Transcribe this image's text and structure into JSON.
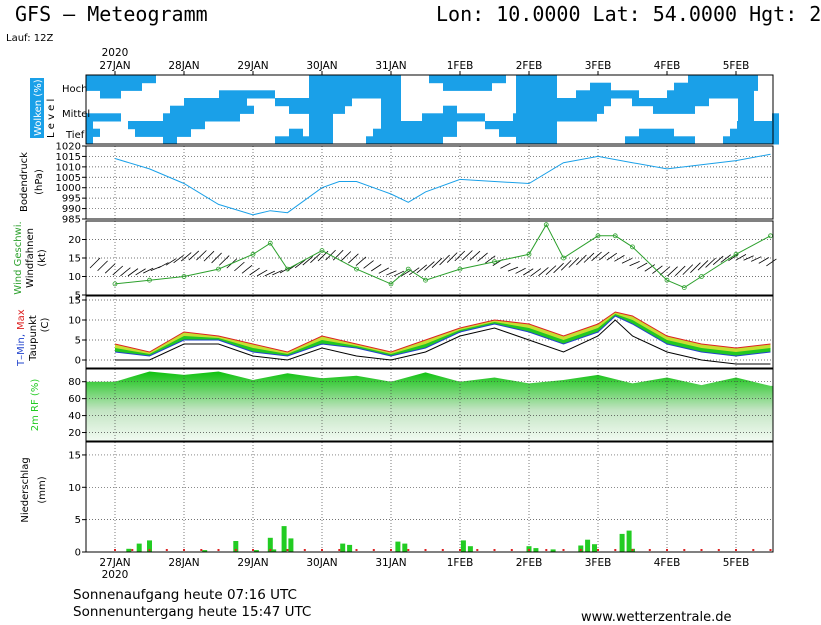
{
  "header": {
    "title": "GFS – Meteogramm",
    "coords": "Lon: 10.0000 Lat: 54.0000 Hgt: 2",
    "run": "Lauf: 12Z"
  },
  "footer": {
    "sunrise": "Sonnenaufgang heute 07:16 UTC",
    "sunset": "Sonnenuntergang heute 15:47 UTC",
    "site": "www.wetterzentrale.de"
  },
  "colors": {
    "clouds": "#1aa0e8",
    "pressure": "#1aa0e8",
    "wind_speed": "#2ca02c",
    "tmin": "#2244cc",
    "tmax": "#dd2222",
    "band_green": "#22c822",
    "band_yellow": "#e3e335",
    "humidity": "#22cc22",
    "precip": "#22cc22",
    "precip_snow": "#dd2222"
  },
  "chart_data": {
    "type": "meteogram",
    "year": "2020",
    "dates": [
      "27JAN",
      "28JAN",
      "29JAN",
      "30JAN",
      "31JAN",
      "1FEB",
      "2FEB",
      "3FEB",
      "4FEB",
      "5FEB"
    ],
    "panels": [
      {
        "id": "clouds",
        "ylabel": "Wolken (%)",
        "levels_label": "L e v e l",
        "levels": [
          "Hoch",
          "Mittel",
          "Tief"
        ]
      },
      {
        "id": "pressure",
        "ylabel": "Bodendruck",
        "unit": "(hPa)",
        "ylim": [
          985,
          1020
        ],
        "yticks": [
          985,
          990,
          995,
          1000,
          1005,
          1010,
          1015,
          1020
        ],
        "x": [
          0,
          0.5,
          1,
          1.5,
          2,
          2.25,
          2.5,
          3,
          3.25,
          3.5,
          4,
          4.25,
          4.5,
          5,
          5.5,
          6,
          6.5,
          7,
          7.5,
          8,
          8.5,
          9,
          9.5
        ],
        "values": [
          1014,
          1009,
          1002,
          992,
          987,
          989,
          988,
          1000,
          1003,
          1003,
          997,
          993,
          998,
          1004,
          1003,
          1002,
          1012,
          1015,
          1012,
          1009,
          1011,
          1013,
          1016
        ]
      },
      {
        "id": "wind",
        "ylabel_1": "Wind Geschwi.",
        "ylabel_2": "Windfahnen",
        "unit": "(kt)",
        "ylim": [
          5,
          25
        ],
        "yticks": [
          5,
          10,
          15,
          20
        ],
        "x": [
          0,
          0.5,
          1,
          1.5,
          2,
          2.25,
          2.5,
          3,
          3.5,
          4,
          4.25,
          4.5,
          5,
          5.5,
          6,
          6.25,
          6.5,
          7,
          7.25,
          7.5,
          8,
          8.25,
          8.5,
          9,
          9.5
        ],
        "values": [
          8,
          9,
          10,
          12,
          16,
          19,
          12,
          17,
          12,
          8,
          12,
          9,
          12,
          14,
          16,
          24,
          15,
          21,
          21,
          18,
          9,
          7,
          10,
          16,
          21
        ]
      },
      {
        "id": "temp",
        "ylabel_tmin": "T–Min,",
        "ylabel_tmax": "Max",
        "ylabel_dew": "Taupunkt",
        "unit": "(C)",
        "ylim": [
          -2,
          16
        ],
        "yticks": [
          0,
          5,
          10,
          15
        ],
        "x": [
          0,
          0.5,
          1,
          1.5,
          2,
          2.5,
          3,
          3.5,
          4,
          4.5,
          5,
          5.5,
          6,
          6.5,
          7,
          7.25,
          7.5,
          8,
          8.5,
          9,
          9.5
        ],
        "tmax": [
          4,
          2,
          7,
          6,
          4,
          2,
          6,
          4,
          2,
          5,
          8,
          10,
          9,
          6,
          9,
          12,
          11,
          6,
          4,
          3,
          4
        ],
        "tmin": [
          2,
          1,
          5,
          5,
          2,
          1,
          4,
          3,
          1,
          3,
          7,
          9,
          7,
          4,
          7,
          11,
          9,
          4,
          2,
          1,
          2
        ],
        "dewpoint": [
          0,
          0,
          4,
          4,
          1,
          0,
          3,
          1,
          0,
          2,
          6,
          8,
          5,
          2,
          6,
          10,
          6,
          2,
          0,
          -1,
          -1
        ]
      },
      {
        "id": "humidity",
        "ylabel": "2m RF (%)",
        "ylim": [
          10,
          95
        ],
        "yticks": [
          20,
          40,
          60,
          80
        ],
        "x": [
          0,
          0.5,
          1,
          1.5,
          2,
          2.5,
          3,
          3.5,
          4,
          4.5,
          5,
          5.5,
          6,
          6.5,
          7,
          7.5,
          8,
          8.5,
          9,
          9.5
        ],
        "values": [
          80,
          92,
          88,
          92,
          82,
          90,
          84,
          87,
          80,
          91,
          80,
          85,
          78,
          82,
          88,
          78,
          85,
          76,
          85,
          75
        ]
      },
      {
        "id": "precip",
        "ylabel": "Niederschlag",
        "unit": "(mm)",
        "ylim": [
          0,
          17
        ],
        "yticks": [
          0,
          5,
          10,
          15
        ],
        "x": [
          0.2,
          0.35,
          0.5,
          1.3,
          1.75,
          2.05,
          2.25,
          2.3,
          2.45,
          2.55,
          3.3,
          3.4,
          4.1,
          4.2,
          5.05,
          5.15,
          6.0,
          6.1,
          6.35,
          6.75,
          6.85,
          6.95,
          7.35,
          7.45,
          7.5
        ],
        "values": [
          0.5,
          1.3,
          1.8,
          0.3,
          1.7,
          0.3,
          2.2,
          0.4,
          4.0,
          2.1,
          1.3,
          1.1,
          1.6,
          1.3,
          1.8,
          0.9,
          0.9,
          0.6,
          0.4,
          1.0,
          1.9,
          1.2,
          2.8,
          3.3,
          0.5
        ]
      }
    ]
  }
}
